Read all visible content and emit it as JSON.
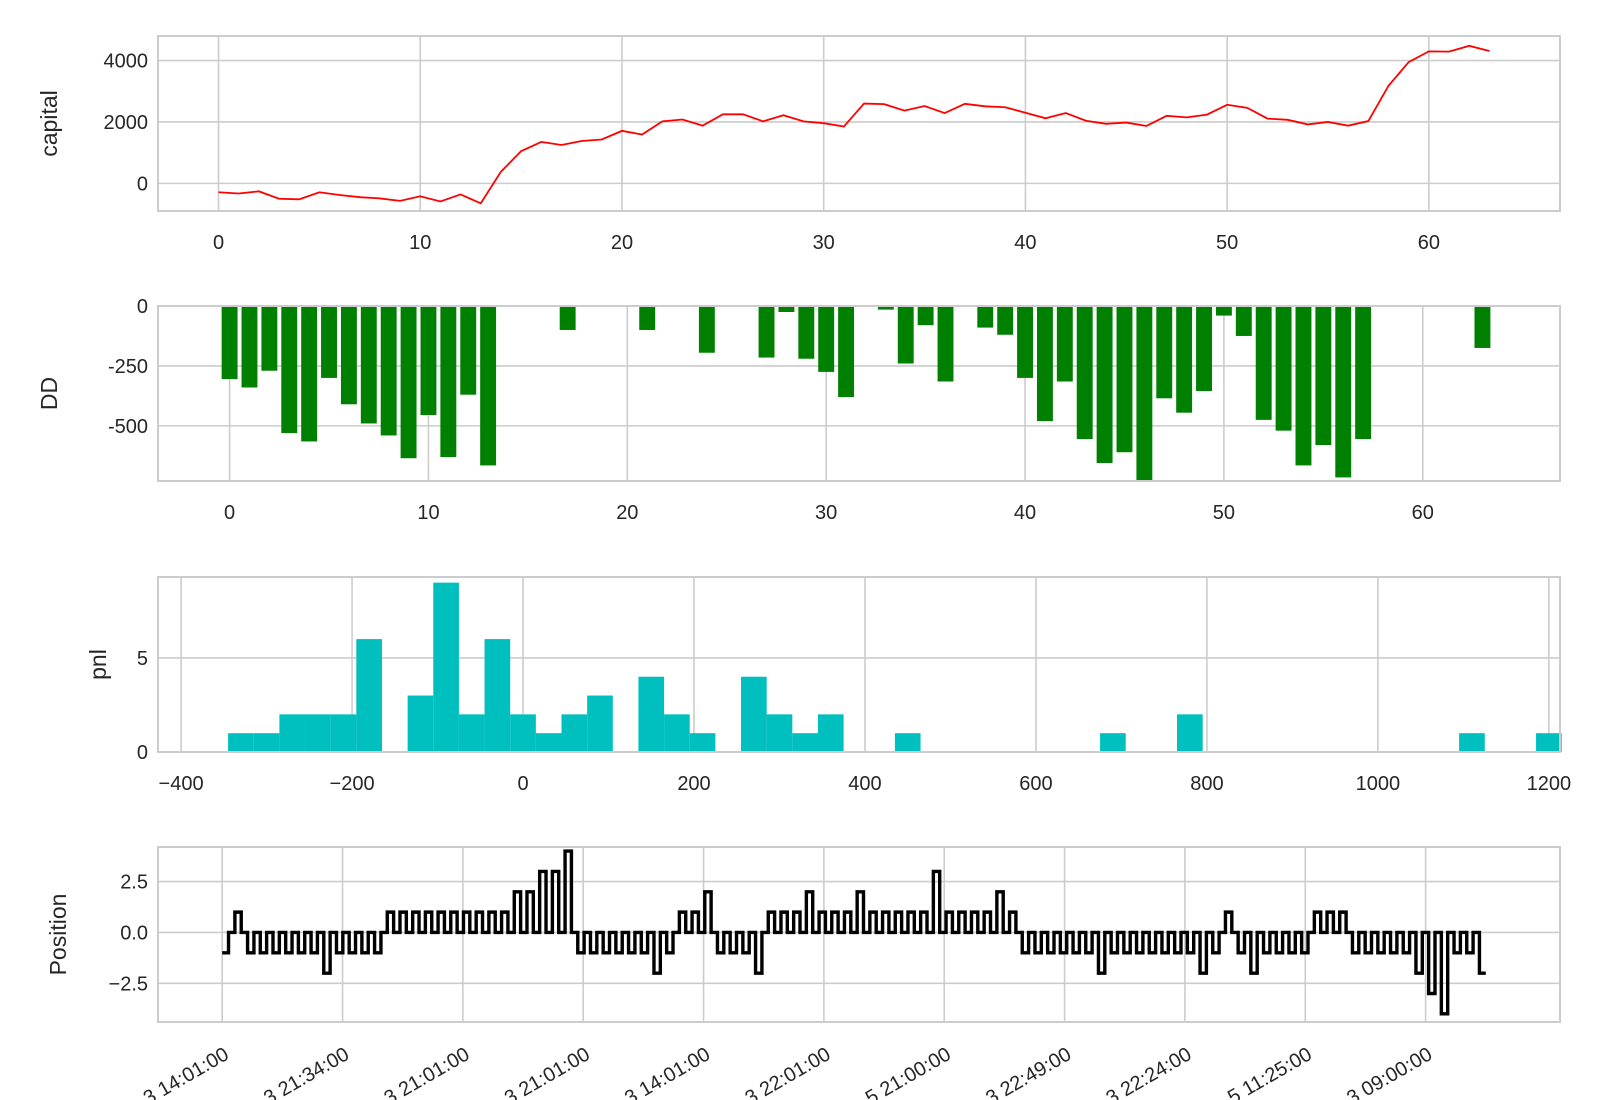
{
  "chart_data": [
    {
      "type": "line",
      "ylabel": "capital",
      "color": "#ff0000",
      "xticks": [
        0,
        10,
        20,
        30,
        40,
        50,
        60
      ],
      "xlim": [
        -3,
        66.5
      ],
      "yticks": [
        0,
        2000,
        4000
      ],
      "ylim": [
        -900,
        4800
      ],
      "x": [
        0,
        1,
        2,
        3,
        4,
        5,
        6,
        7,
        8,
        9,
        10,
        11,
        12,
        13,
        14,
        15,
        16,
        17,
        18,
        19,
        20,
        21,
        22,
        23,
        24,
        25,
        26,
        27,
        28,
        29,
        30,
        31,
        32,
        33,
        34,
        35,
        36,
        37,
        38,
        39,
        40,
        41,
        42,
        43,
        44,
        45,
        46,
        47,
        48,
        49,
        50,
        51,
        52,
        53,
        54,
        55,
        56,
        57,
        58,
        59,
        60,
        61,
        62,
        63
      ],
      "values": [
        -290,
        -330,
        -260,
        -500,
        -520,
        -290,
        -380,
        -450,
        -490,
        -570,
        -420,
        -590,
        -360,
        -650,
        380,
        1050,
        1350,
        1250,
        1380,
        1430,
        1710,
        1590,
        2020,
        2080,
        1880,
        2250,
        2250,
        2020,
        2220,
        2020,
        1960,
        1850,
        2600,
        2580,
        2370,
        2520,
        2290,
        2590,
        2510,
        2480,
        2300,
        2120,
        2290,
        2040,
        1940,
        1980,
        1870,
        2200,
        2150,
        2240,
        2560,
        2460,
        2110,
        2070,
        1920,
        2000,
        1880,
        2030,
        3180,
        3950,
        4300,
        4290,
        4480,
        4310
      ]
    },
    {
      "type": "bar",
      "ylabel": "DD",
      "color": "#008000",
      "xticks": [
        0,
        10,
        20,
        30,
        40,
        50,
        60
      ],
      "xlim": [
        -3.6,
        66.9
      ],
      "yticks": [
        0,
        -250,
        -500
      ],
      "ylim": [
        -730,
        0
      ],
      "x": [
        0,
        1,
        2,
        3,
        4,
        5,
        6,
        7,
        8,
        9,
        10,
        11,
        12,
        13,
        14,
        15,
        16,
        17,
        18,
        19,
        20,
        21,
        22,
        23,
        24,
        25,
        26,
        27,
        28,
        29,
        30,
        31,
        32,
        33,
        34,
        35,
        36,
        37,
        38,
        39,
        40,
        41,
        42,
        43,
        44,
        45,
        46,
        47,
        48,
        49,
        50,
        51,
        52,
        53,
        54,
        55,
        56,
        57,
        58,
        59,
        60,
        61,
        62,
        63
      ],
      "values": [
        -305,
        -340,
        -270,
        -530,
        -565,
        -300,
        -410,
        -490,
        -540,
        -635,
        -455,
        -630,
        -370,
        -665,
        0,
        0,
        0,
        -100,
        0,
        0,
        0,
        -100,
        0,
        0,
        -195,
        0,
        0,
        -215,
        -25,
        -220,
        -275,
        -380,
        0,
        -15,
        -240,
        -80,
        -315,
        0,
        -90,
        -120,
        -300,
        -480,
        -315,
        -555,
        -655,
        -610,
        -730,
        -385,
        -445,
        -355,
        -40,
        -125,
        -475,
        -520,
        -665,
        -580,
        -715,
        -555,
        0,
        0,
        0,
        0,
        0,
        -175
      ]
    },
    {
      "type": "bar",
      "ylabel": "pnl",
      "color": "#00bfbf",
      "xticks": [
        -400,
        -200,
        0,
        200,
        400,
        600,
        800,
        1000,
        1200
      ],
      "xticklabels": [
        "−400",
        "−200",
        "0",
        "200",
        "400",
        "600",
        "800",
        "1000",
        "1200"
      ],
      "xlim": [
        -427,
        1213
      ],
      "yticks": [
        0,
        5
      ],
      "ylim": [
        0,
        9.3
      ],
      "bin_start": -345,
      "bin_width": 30,
      "values": [
        1,
        1,
        2,
        2,
        2,
        6,
        0,
        3,
        9,
        2,
        6,
        2,
        1,
        2,
        3,
        0,
        4,
        2,
        1,
        0,
        4,
        2,
        1,
        2,
        0,
        0,
        1,
        0,
        0,
        0,
        0,
        0,
        0,
        0,
        1,
        0,
        0,
        2,
        0,
        0,
        0,
        0,
        0,
        0,
        0,
        0,
        0,
        0,
        1,
        0,
        0,
        1
      ]
    },
    {
      "type": "line",
      "ylabel": "Position",
      "color": "#000000",
      "step": true,
      "xlim": [
        -3.2,
        66.7
      ],
      "yticks": [
        2.5,
        0.0,
        -2.5
      ],
      "yticklabels": [
        "2.5",
        "0.0",
        "−2.5"
      ],
      "ylim": [
        -4.4,
        4.2
      ],
      "xtick_positions": [
        0,
        6,
        12,
        18,
        24,
        30,
        36,
        42,
        48,
        54,
        60
      ],
      "xticklabels": [
        "…3 14:01:00",
        "…3 21:34:00",
        "…3 21:01:00",
        "…3 21:01:00",
        "…3 14:01:00",
        "…3 22:01:00",
        "…5 21:00:00",
        "…3 22:49:00",
        "…3 22:24:00",
        "…5 11:25:00",
        "…3 09:00:00"
      ],
      "values": [
        -1,
        0,
        1,
        0,
        -1,
        0,
        -1,
        0,
        -1,
        0,
        -1,
        0,
        -1,
        0,
        -1,
        0,
        -2,
        0,
        -1,
        0,
        -1,
        0,
        -1,
        0,
        -1,
        0,
        1,
        0,
        1,
        0,
        1,
        0,
        1,
        0,
        1,
        0,
        1,
        0,
        1,
        0,
        1,
        0,
        1,
        0,
        1,
        0,
        2,
        0,
        2,
        0,
        3,
        0,
        3,
        0,
        4,
        0,
        -1,
        0,
        -1,
        0,
        -1,
        0,
        -1,
        0,
        -1,
        0,
        -1,
        0,
        -2,
        0,
        -1,
        0,
        1,
        0,
        1,
        0,
        2,
        0,
        -1,
        0,
        -1,
        0,
        -1,
        0,
        -2,
        0,
        1,
        0,
        1,
        0,
        1,
        0,
        2,
        0,
        1,
        0,
        1,
        0,
        1,
        0,
        2,
        0,
        1,
        0,
        1,
        0,
        1,
        0,
        1,
        0,
        1,
        0,
        3,
        0,
        1,
        0,
        1,
        0,
        1,
        0,
        1,
        0,
        2,
        0,
        1,
        0,
        -1,
        0,
        -1,
        0,
        -1,
        0,
        -1,
        0,
        -1,
        0,
        -1,
        0,
        -2,
        0,
        -1,
        0,
        -1,
        0,
        -1,
        0,
        -1,
        0,
        -1,
        0,
        -1,
        0,
        -1,
        0,
        -2,
        0,
        -1,
        0,
        1,
        0,
        -1,
        0,
        -2,
        0,
        -1,
        0,
        -1,
        0,
        -1,
        0,
        -1,
        0,
        1,
        0,
        1,
        0,
        1,
        0,
        -1,
        0,
        -1,
        0,
        -1,
        0,
        -1,
        0,
        -1,
        0,
        -2,
        0,
        -3,
        0,
        -4,
        0,
        -1,
        0,
        -1,
        0,
        -2,
        -2
      ]
    }
  ]
}
